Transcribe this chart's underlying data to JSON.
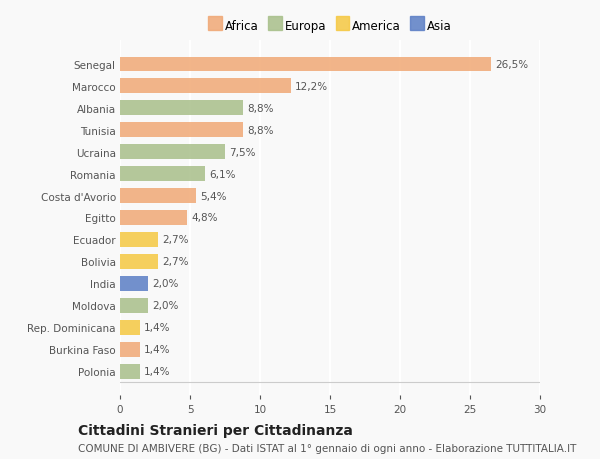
{
  "categories": [
    "Senegal",
    "Marocco",
    "Albania",
    "Tunisia",
    "Ucraina",
    "Romania",
    "Costa d'Avorio",
    "Egitto",
    "Ecuador",
    "Bolivia",
    "India",
    "Moldova",
    "Rep. Dominicana",
    "Burkina Faso",
    "Polonia"
  ],
  "values": [
    26.5,
    12.2,
    8.8,
    8.8,
    7.5,
    6.1,
    5.4,
    4.8,
    2.7,
    2.7,
    2.0,
    2.0,
    1.4,
    1.4,
    1.4
  ],
  "labels": [
    "26,5%",
    "12,2%",
    "8,8%",
    "8,8%",
    "7,5%",
    "6,1%",
    "5,4%",
    "4,8%",
    "2,7%",
    "2,7%",
    "2,0%",
    "2,0%",
    "1,4%",
    "1,4%",
    "1,4%"
  ],
  "colors": [
    "#f0a875",
    "#f0a875",
    "#a8bf8a",
    "#f0a875",
    "#a8bf8a",
    "#a8bf8a",
    "#f0a875",
    "#f0a875",
    "#f5c842",
    "#f5c842",
    "#5b7ec5",
    "#a8bf8a",
    "#f5c842",
    "#f0a875",
    "#a8bf8a"
  ],
  "continent_colors": {
    "Africa": "#f0a875",
    "Europa": "#a8bf8a",
    "America": "#f5c842",
    "Asia": "#5b7ec5"
  },
  "title": "Cittadini Stranieri per Cittadinanza",
  "subtitle": "COMUNE DI AMBIVERE (BG) - Dati ISTAT al 1° gennaio di ogni anno - Elaborazione TUTTITALIA.IT",
  "xlim": [
    0,
    30
  ],
  "xticks": [
    0,
    5,
    10,
    15,
    20,
    25,
    30
  ],
  "background_color": "#f9f9f9",
  "bar_height": 0.65,
  "title_fontsize": 10,
  "subtitle_fontsize": 7.5,
  "label_fontsize": 7.5,
  "tick_fontsize": 7.5,
  "legend_fontsize": 8.5
}
